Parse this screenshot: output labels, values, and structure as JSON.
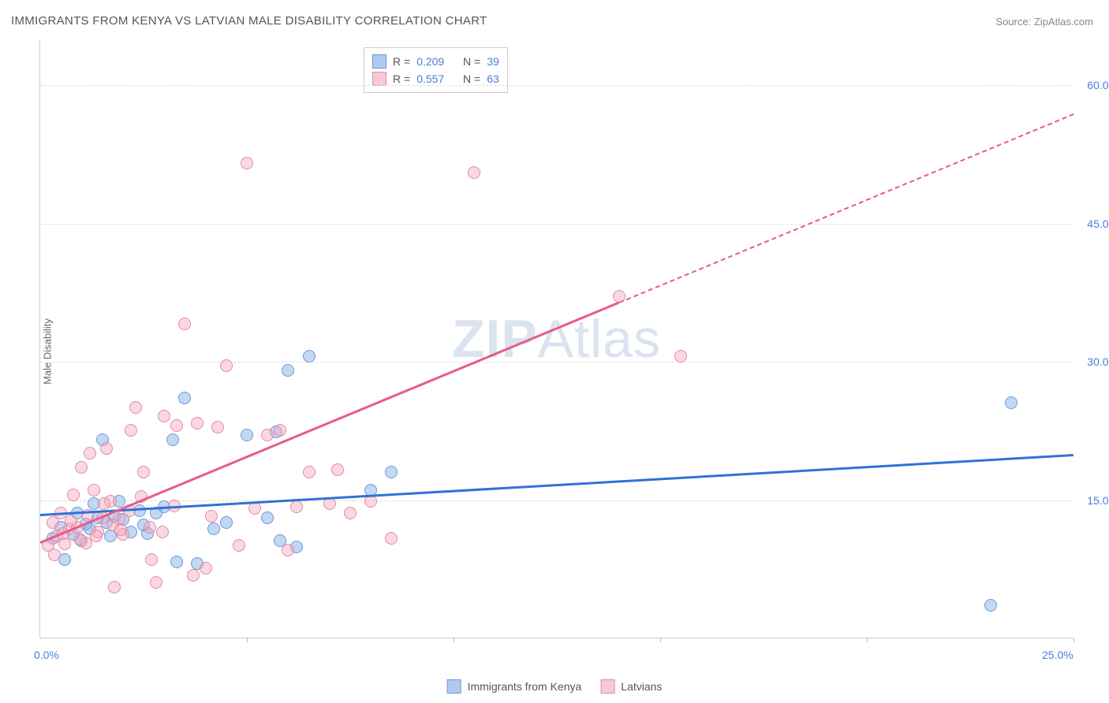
{
  "title": "IMMIGRANTS FROM KENYA VS LATVIAN MALE DISABILITY CORRELATION CHART",
  "source_label": "Source:",
  "source_value": "ZipAtlas.com",
  "y_axis_label": "Male Disability",
  "watermark_bold": "ZIP",
  "watermark_rest": "Atlas",
  "chart": {
    "type": "scatter",
    "background_color": "#ffffff",
    "grid_color": "#dddddd",
    "axis_color": "#cccccc",
    "tick_label_color": "#4a7fd8",
    "xlim": [
      0,
      25
    ],
    "ylim": [
      0,
      65
    ],
    "y_ticks": [
      {
        "value": 15,
        "label": "15.0%"
      },
      {
        "value": 30,
        "label": "30.0%"
      },
      {
        "value": 45,
        "label": "45.0%"
      },
      {
        "value": 60,
        "label": "60.0%"
      }
    ],
    "x_ticks_labels": [
      {
        "value": 0,
        "label": "0.0%"
      },
      {
        "value": 25,
        "label": "25.0%"
      }
    ],
    "x_tick_marks": [
      5,
      10,
      15,
      20,
      25
    ],
    "marker_radius": 8,
    "marker_stroke_width": 1,
    "series": [
      {
        "name": "Immigrants from Kenya",
        "fill_color": "rgba(122, 168, 228, 0.45)",
        "stroke_color": "#6a98d8",
        "swatch_fill": "#aecbef",
        "swatch_border": "#6a98d8",
        "r": "0.209",
        "n": "39",
        "trend_color": "#2f72d6",
        "trend_start": {
          "x": 0,
          "y": 13.5
        },
        "trend_end": {
          "x": 25,
          "y": 20
        },
        "points": [
          {
            "x": 0.3,
            "y": 10.8
          },
          {
            "x": 0.5,
            "y": 12.0
          },
          {
            "x": 0.6,
            "y": 8.5
          },
          {
            "x": 0.8,
            "y": 11.2
          },
          {
            "x": 0.9,
            "y": 13.5
          },
          {
            "x": 1.0,
            "y": 10.5
          },
          {
            "x": 1.1,
            "y": 12.3
          },
          {
            "x": 1.2,
            "y": 11.8
          },
          {
            "x": 1.3,
            "y": 14.5
          },
          {
            "x": 1.4,
            "y": 13.0
          },
          {
            "x": 1.5,
            "y": 21.5
          },
          {
            "x": 1.6,
            "y": 12.5
          },
          {
            "x": 1.7,
            "y": 11.0
          },
          {
            "x": 1.8,
            "y": 13.2
          },
          {
            "x": 2.0,
            "y": 12.8
          },
          {
            "x": 2.2,
            "y": 11.5
          },
          {
            "x": 2.4,
            "y": 13.8
          },
          {
            "x": 2.5,
            "y": 12.2
          },
          {
            "x": 2.8,
            "y": 13.5
          },
          {
            "x": 3.2,
            "y": 21.5
          },
          {
            "x": 3.3,
            "y": 8.2
          },
          {
            "x": 3.5,
            "y": 26.0
          },
          {
            "x": 3.8,
            "y": 8.0
          },
          {
            "x": 4.5,
            "y": 12.5
          },
          {
            "x": 5.0,
            "y": 22.0
          },
          {
            "x": 5.5,
            "y": 13.0
          },
          {
            "x": 5.7,
            "y": 22.3
          },
          {
            "x": 5.8,
            "y": 10.5
          },
          {
            "x": 6.0,
            "y": 29.0
          },
          {
            "x": 6.2,
            "y": 9.8
          },
          {
            "x": 6.5,
            "y": 30.5
          },
          {
            "x": 8.5,
            "y": 18.0
          },
          {
            "x": 8.0,
            "y": 16.0
          },
          {
            "x": 23.0,
            "y": 3.5
          },
          {
            "x": 23.5,
            "y": 25.5
          },
          {
            "x": 1.9,
            "y": 14.8
          },
          {
            "x": 2.6,
            "y": 11.3
          },
          {
            "x": 3.0,
            "y": 14.2
          },
          {
            "x": 4.2,
            "y": 11.8
          }
        ]
      },
      {
        "name": "Latvians",
        "fill_color": "rgba(244, 168, 190, 0.45)",
        "stroke_color": "#e788a5",
        "swatch_fill": "#f7c9d7",
        "swatch_border": "#e788a5",
        "r": "0.557",
        "n": "63",
        "trend_color": "#e85a8a",
        "trend_start": {
          "x": 0,
          "y": 10.5
        },
        "trend_end": {
          "x": 25,
          "y": 57
        },
        "trend_solid_until_x": 14,
        "points": [
          {
            "x": 0.2,
            "y": 10.0
          },
          {
            "x": 0.3,
            "y": 12.5
          },
          {
            "x": 0.4,
            "y": 11.0
          },
          {
            "x": 0.5,
            "y": 13.5
          },
          {
            "x": 0.6,
            "y": 10.2
          },
          {
            "x": 0.7,
            "y": 11.8
          },
          {
            "x": 0.8,
            "y": 15.5
          },
          {
            "x": 0.9,
            "y": 12.0
          },
          {
            "x": 1.0,
            "y": 18.5
          },
          {
            "x": 1.1,
            "y": 10.3
          },
          {
            "x": 1.2,
            "y": 20.0
          },
          {
            "x": 1.3,
            "y": 16.0
          },
          {
            "x": 1.4,
            "y": 11.5
          },
          {
            "x": 1.5,
            "y": 13.0
          },
          {
            "x": 1.6,
            "y": 20.5
          },
          {
            "x": 1.7,
            "y": 14.8
          },
          {
            "x": 1.8,
            "y": 5.5
          },
          {
            "x": 1.9,
            "y": 12.8
          },
          {
            "x": 2.0,
            "y": 11.2
          },
          {
            "x": 2.2,
            "y": 22.5
          },
          {
            "x": 2.3,
            "y": 25.0
          },
          {
            "x": 2.5,
            "y": 18.0
          },
          {
            "x": 2.7,
            "y": 8.5
          },
          {
            "x": 2.8,
            "y": 6.0
          },
          {
            "x": 3.0,
            "y": 24.0
          },
          {
            "x": 3.3,
            "y": 23.0
          },
          {
            "x": 3.5,
            "y": 34.0
          },
          {
            "x": 3.7,
            "y": 6.8
          },
          {
            "x": 3.8,
            "y": 23.3
          },
          {
            "x": 4.0,
            "y": 7.5
          },
          {
            "x": 4.3,
            "y": 22.8
          },
          {
            "x": 4.5,
            "y": 29.5
          },
          {
            "x": 4.8,
            "y": 10.0
          },
          {
            "x": 5.0,
            "y": 51.5
          },
          {
            "x": 5.2,
            "y": 14.0
          },
          {
            "x": 5.5,
            "y": 22.0
          },
          {
            "x": 5.8,
            "y": 22.5
          },
          {
            "x": 6.0,
            "y": 9.5
          },
          {
            "x": 6.2,
            "y": 14.2
          },
          {
            "x": 6.5,
            "y": 18.0
          },
          {
            "x": 7.0,
            "y": 14.5
          },
          {
            "x": 7.2,
            "y": 18.2
          },
          {
            "x": 7.5,
            "y": 13.5
          },
          {
            "x": 8.0,
            "y": 14.8
          },
          {
            "x": 8.5,
            "y": 10.8
          },
          {
            "x": 10.5,
            "y": 50.5
          },
          {
            "x": 14.0,
            "y": 37.0
          },
          {
            "x": 15.5,
            "y": 30.5
          },
          {
            "x": 0.35,
            "y": 9.0
          },
          {
            "x": 0.55,
            "y": 11.3
          },
          {
            "x": 0.75,
            "y": 12.7
          },
          {
            "x": 0.95,
            "y": 10.7
          },
          {
            "x": 1.15,
            "y": 13.3
          },
          {
            "x": 1.35,
            "y": 11.0
          },
          {
            "x": 1.55,
            "y": 14.5
          },
          {
            "x": 1.75,
            "y": 12.2
          },
          {
            "x": 1.95,
            "y": 11.7
          },
          {
            "x": 2.15,
            "y": 13.8
          },
          {
            "x": 2.45,
            "y": 15.3
          },
          {
            "x": 2.65,
            "y": 12.0
          },
          {
            "x": 2.95,
            "y": 11.5
          },
          {
            "x": 3.25,
            "y": 14.3
          },
          {
            "x": 4.15,
            "y": 13.2
          }
        ]
      }
    ]
  },
  "legend_labels": {
    "r_label": "R =",
    "n_label": "N ="
  }
}
